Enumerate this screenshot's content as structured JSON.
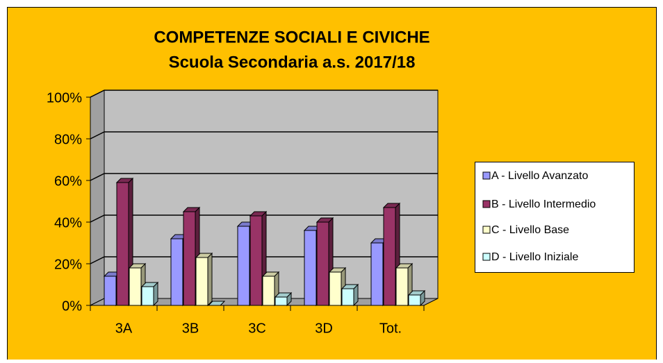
{
  "chart_data": {
    "type": "bar",
    "title": "COMPETENZE SOCIALI E CIVICHE",
    "subtitle": "Scuola Secondaria a.s. 2017/18",
    "categories": [
      "3A",
      "3B",
      "3C",
      "3D",
      "Tot."
    ],
    "series": [
      {
        "name": "A - Livello Avanzato",
        "color": "#9999FF",
        "values": [
          14,
          32,
          38,
          36,
          30
        ]
      },
      {
        "name": "B - Livello Intermedio",
        "color": "#993366",
        "values": [
          59,
          45,
          43,
          40,
          47
        ]
      },
      {
        "name": "C - Livello Base",
        "color": "#FFFFCC",
        "values": [
          18,
          23,
          14,
          16,
          18
        ]
      },
      {
        "name": "D - Livello Iniziale",
        "color": "#CCFFFF",
        "values": [
          9,
          0,
          4,
          8,
          5
        ]
      }
    ],
    "ylim": [
      0,
      100
    ],
    "yticks": [
      {
        "value": 0,
        "label": "0%"
      },
      {
        "value": 20,
        "label": "20%"
      },
      {
        "value": 40,
        "label": "40%"
      },
      {
        "value": 60,
        "label": "60%"
      },
      {
        "value": 80,
        "label": "80%"
      },
      {
        "value": 100,
        "label": "100%"
      }
    ],
    "grid": true,
    "legend": "right"
  }
}
